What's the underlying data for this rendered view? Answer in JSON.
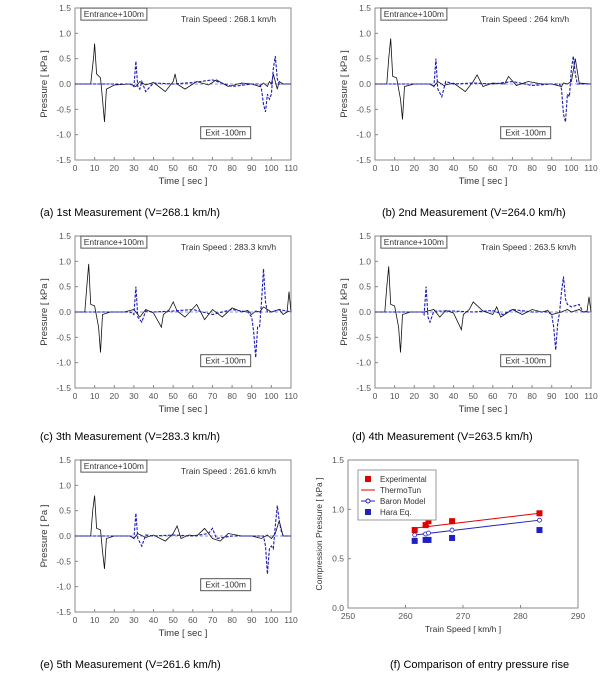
{
  "chart_data": [
    {
      "type": "line",
      "panel": "a",
      "caption": "(a)  1st Measurement (V=268.1 km/h)",
      "xlabel": "Time [ sec ]",
      "ylabel": "Pressure [ kPa ]",
      "xlim": [
        0,
        110
      ],
      "ylim": [
        -1.5,
        1.5
      ],
      "xticks": [
        "0",
        "10",
        "20",
        "30",
        "40",
        "50",
        "60",
        "70",
        "80",
        "90",
        "100",
        "110"
      ],
      "yticks": [
        "1.5",
        "1.0",
        "0.5",
        "0.0",
        "-0.5",
        "-1.0",
        "-1.5"
      ],
      "annotations": [
        "Entrance+100m",
        "Exit -100m"
      ],
      "speed_text": "Train Speed : 268.1 km/h",
      "series": [
        {
          "style": "solid",
          "x": [
            0,
            8,
            9.5,
            10,
            11,
            13,
            14,
            15,
            16,
            20,
            28,
            31,
            33,
            36,
            40,
            46,
            50,
            51,
            52,
            56,
            62,
            68,
            72,
            78,
            85,
            90,
            94,
            96,
            98,
            99,
            100,
            101,
            102,
            103,
            104,
            106,
            110
          ],
          "y": [
            0,
            0,
            0.55,
            0.8,
            0.2,
            0.12,
            -0.3,
            -0.75,
            -0.1,
            -0.02,
            0,
            -0.05,
            0.05,
            -0.02,
            0.03,
            -0.15,
            0.05,
            0.2,
            0,
            -0.1,
            0.05,
            -0.02,
            0.08,
            -0.05,
            0.02,
            0,
            -0.05,
            0.02,
            -0.05,
            0.05,
            0,
            0.2,
            0.05,
            -0.1,
            0.05,
            0,
            0
          ]
        },
        {
          "style": "dashed",
          "x": [
            0,
            28,
            30,
            31,
            32,
            33,
            34,
            36,
            40,
            50,
            60,
            70,
            80,
            90,
            94,
            95,
            96,
            97,
            98,
            99,
            100,
            101,
            102,
            103,
            104,
            106,
            110
          ],
          "y": [
            0,
            0,
            -0.05,
            0.45,
            -0.05,
            -0.1,
            0.05,
            -0.15,
            0.02,
            0,
            0.03,
            0.08,
            -0.05,
            0,
            0,
            -0.1,
            -0.4,
            -0.55,
            -0.2,
            -0.3,
            -0.2,
            0.3,
            0.55,
            0.1,
            0,
            0,
            0
          ]
        }
      ]
    },
    {
      "type": "line",
      "panel": "b",
      "caption": "(b)  2nd Measurement (V=264.0 km/h)",
      "xlabel": "Time [ sec ]",
      "ylabel": "Pressure [ kPa ]",
      "xlim": [
        0,
        110
      ],
      "ylim": [
        -1.5,
        1.5
      ],
      "xticks": [
        "0",
        "10",
        "20",
        "30",
        "40",
        "50",
        "60",
        "70",
        "80",
        "90",
        "100",
        "110"
      ],
      "yticks": [
        "1.5",
        "1.0",
        "0.5",
        "0.0",
        "-0.5",
        "-1.0",
        "-1.5"
      ],
      "annotations": [
        "Entrance+100m",
        "Exit -100m"
      ],
      "speed_text": "Train Speed : 264 km/h",
      "series": [
        {
          "style": "solid",
          "x": [
            0,
            6,
            7,
            8,
            9,
            11,
            13,
            14,
            15,
            20,
            28,
            30,
            32,
            35,
            40,
            46,
            50,
            52,
            55,
            60,
            66,
            68,
            72,
            78,
            85,
            90,
            95,
            96,
            98,
            100,
            102,
            104,
            110
          ],
          "y": [
            0,
            0,
            0.5,
            0.9,
            0.15,
            0.12,
            -0.3,
            -0.7,
            -0.05,
            0,
            0,
            -0.05,
            0.05,
            -0.03,
            0.02,
            -0.15,
            0.05,
            0.18,
            -0.05,
            0.02,
            0,
            0.15,
            -0.03,
            0.05,
            0,
            0,
            -0.05,
            0.02,
            0,
            0.05,
            0.5,
            0.02,
            0
          ]
        },
        {
          "style": "dashed",
          "x": [
            0,
            28,
            30,
            31,
            32,
            34,
            36,
            40,
            50,
            60,
            70,
            80,
            90,
            94,
            95,
            96,
            97,
            98,
            99,
            100,
            101,
            102,
            103,
            105,
            110
          ],
          "y": [
            0,
            0,
            -0.05,
            0.5,
            -0.1,
            -0.25,
            0.05,
            0,
            0.02,
            0,
            0.05,
            -0.03,
            0,
            0,
            -0.1,
            -0.6,
            -0.75,
            -0.2,
            -0.25,
            0.3,
            0.55,
            0.2,
            0,
            0,
            0
          ]
        }
      ]
    },
    {
      "type": "line",
      "panel": "c",
      "caption": "(c)  3th Measurement (V=283.3 km/h)",
      "xlabel": "Time [ sec ]",
      "ylabel": "Pressure [ kPa ]",
      "xlim": [
        0,
        110
      ],
      "ylim": [
        -1.5,
        1.5
      ],
      "xticks": [
        "0",
        "10",
        "20",
        "30",
        "40",
        "50",
        "60",
        "70",
        "80",
        "90",
        "100",
        "110"
      ],
      "yticks": [
        "1.5",
        "1.0",
        "0.5",
        "0.0",
        "-0.5",
        "-1.0",
        "-1.5"
      ],
      "annotations": [
        "Entrance+100m",
        "Exit -100m"
      ],
      "speed_text": "Train Speed : 283.3 km/h",
      "series": [
        {
          "style": "solid",
          "x": [
            0,
            5,
            6,
            7,
            8,
            10,
            12,
            13,
            14,
            18,
            25,
            30,
            33,
            36,
            40,
            44,
            45,
            48,
            50,
            52,
            56,
            62,
            66,
            70,
            75,
            80,
            85,
            88,
            90,
            92,
            94,
            96,
            100,
            104,
            106,
            108,
            109,
            110
          ],
          "y": [
            0,
            0,
            0.5,
            0.95,
            0.15,
            0.12,
            -0.3,
            -0.8,
            -0.05,
            0,
            0,
            0.05,
            -0.1,
            0.05,
            -0.02,
            -0.3,
            -0.05,
            0.05,
            0.2,
            0.02,
            -0.1,
            0.15,
            -0.15,
            0.05,
            -0.1,
            0.08,
            0,
            0.03,
            -0.05,
            0.02,
            0,
            0.1,
            0,
            0.05,
            -0.05,
            0,
            0.4,
            0
          ]
        },
        {
          "style": "dashed",
          "x": [
            0,
            28,
            30,
            31,
            32,
            34,
            36,
            40,
            50,
            60,
            70,
            80,
            88,
            90,
            91,
            92,
            93,
            94,
            95,
            96,
            97,
            98,
            100,
            104,
            110
          ],
          "y": [
            0,
            0,
            -0.05,
            0.5,
            -0.1,
            -0.2,
            0.02,
            0,
            0.02,
            0.05,
            -0.05,
            0.05,
            0,
            -0.1,
            -0.4,
            -0.9,
            -0.3,
            -0.3,
            0.2,
            0.85,
            0.2,
            0,
            0,
            0.05,
            0
          ]
        }
      ]
    },
    {
      "type": "line",
      "panel": "d",
      "caption": "(d)  4th Measurement (V=263.5 km/h)",
      "xlabel": "Time [ sec ]",
      "ylabel": "Pressure [ kPa ]",
      "xlim": [
        0,
        110
      ],
      "ylim": [
        -1.5,
        1.5
      ],
      "xticks": [
        "0",
        "10",
        "20",
        "30",
        "40",
        "50",
        "60",
        "70",
        "80",
        "90",
        "100",
        "110"
      ],
      "yticks": [
        "1.5",
        "1.0",
        "0.5",
        "0.0",
        "-0.5",
        "-1.0",
        "-1.5"
      ],
      "annotations": [
        "Entrance+100m",
        "Exit -100m"
      ],
      "speed_text": "Train Speed : 263.5 km/h",
      "series": [
        {
          "style": "solid",
          "x": [
            0,
            5,
            6,
            7,
            8,
            10,
            12,
            13,
            14,
            18,
            25,
            30,
            33,
            36,
            40,
            44,
            45,
            48,
            50,
            55,
            60,
            62,
            64,
            70,
            75,
            80,
            85,
            88,
            90,
            95,
            98,
            100,
            104,
            106,
            108,
            109,
            110
          ],
          "y": [
            0,
            0,
            0.5,
            0.9,
            0.15,
            0.12,
            -0.3,
            -0.8,
            -0.05,
            0,
            0,
            0.05,
            -0.1,
            0.03,
            -0.02,
            -0.35,
            -0.05,
            0.05,
            0.2,
            0.02,
            -0.05,
            0.1,
            -0.1,
            0.05,
            -0.05,
            0.05,
            0,
            0.03,
            -0.05,
            0,
            0.05,
            0,
            0.05,
            0,
            0.02,
            0.3,
            0
          ]
        },
        {
          "style": "dashed",
          "x": [
            0,
            24,
            25,
            26,
            27,
            28,
            30,
            40,
            50,
            60,
            65,
            70,
            80,
            88,
            90,
            91,
            92,
            93,
            94,
            95,
            96,
            97,
            98,
            100,
            104,
            106,
            110
          ],
          "y": [
            0,
            0,
            -0.05,
            0.5,
            -0.1,
            -0.2,
            0.02,
            0.02,
            0,
            0.03,
            -0.05,
            0.05,
            0,
            0,
            -0.05,
            -0.3,
            -0.75,
            -0.25,
            0,
            0.4,
            0.7,
            0.25,
            0.15,
            0.1,
            0.15,
            0,
            0
          ]
        }
      ]
    },
    {
      "type": "line",
      "panel": "e",
      "caption": "(e)  5th Measurement (V=261.6 km/h)",
      "xlabel": "Time [ sec ]",
      "ylabel": "Pressure [ Pa ]",
      "xlim": [
        0,
        110
      ],
      "ylim": [
        -1.5,
        1.5
      ],
      "xticks": [
        "0",
        "10",
        "20",
        "30",
        "40",
        "50",
        "60",
        "70",
        "80",
        "90",
        "100",
        "110"
      ],
      "yticks": [
        "1.5",
        "1.0",
        "0.5",
        "0.0",
        "-0.5",
        "-1.0",
        "-1.5"
      ],
      "annotations": [
        "Entrance+100m",
        "Exit -100m"
      ],
      "speed_text": "Train Speed : 261.6 km/h",
      "series": [
        {
          "style": "solid",
          "x": [
            0,
            8,
            9,
            10,
            11,
            13,
            14,
            15,
            16,
            20,
            28,
            30,
            32,
            36,
            40,
            46,
            50,
            52,
            54,
            58,
            62,
            66,
            70,
            74,
            78,
            85,
            90,
            95,
            98,
            100,
            102,
            104,
            106,
            110
          ],
          "y": [
            0,
            0,
            0.5,
            0.8,
            0.15,
            0.12,
            -0.3,
            -0.65,
            -0.05,
            0,
            0,
            -0.05,
            0.05,
            -0.03,
            0.02,
            -0.1,
            0.05,
            0.2,
            -0.05,
            0.02,
            0,
            0.15,
            -0.05,
            -0.1,
            0.05,
            0,
            0,
            -0.05,
            0.02,
            -0.05,
            0.05,
            0.3,
            0,
            0
          ]
        },
        {
          "style": "dashed",
          "x": [
            0,
            28,
            30,
            31,
            32,
            34,
            36,
            40,
            50,
            60,
            68,
            70,
            72,
            80,
            90,
            96,
            97,
            98,
            99,
            100,
            101,
            102,
            103,
            104,
            105,
            106,
            110
          ],
          "y": [
            0,
            0,
            -0.05,
            0.45,
            -0.05,
            -0.2,
            0.02,
            0,
            0.02,
            0,
            0.05,
            0.15,
            -0.05,
            0,
            0,
            0,
            -0.2,
            -0.75,
            -0.25,
            -0.2,
            -0.25,
            0.2,
            0.6,
            0.3,
            0.1,
            0,
            0
          ]
        }
      ]
    },
    {
      "type": "scatter",
      "panel": "f",
      "caption": "(f)  Comparison of entry pressure rise",
      "xlabel": "Train Speed [ km/h ]",
      "ylabel": "Compression Pressure [ kPa ]",
      "xlim": [
        250,
        290
      ],
      "ylim": [
        0,
        1.5
      ],
      "xticks": [
        "250",
        "260",
        "270",
        "280",
        "290"
      ],
      "yticks": [
        "1.5",
        "1.0",
        "0.5",
        "0.0"
      ],
      "legend_position": "top-left",
      "series": [
        {
          "name": "Experimental",
          "color": "#e00000",
          "marker": "square",
          "x": [
            261.6,
            263.5,
            264.0,
            268.1,
            283.3
          ],
          "y": [
            0.79,
            0.84,
            0.88,
            0.88,
            0.96
          ]
        },
        {
          "name": "ThermoTun",
          "color": "#e00000",
          "marker": "line",
          "x": [
            261.6,
            263.5,
            264.0,
            268.1,
            283.3
          ],
          "y": [
            0.81,
            0.82,
            0.83,
            0.86,
            0.96
          ]
        },
        {
          "name": "Baron Model",
          "color": "#2020c0",
          "marker": "line-circle",
          "x": [
            261.6,
            263.5,
            264.0,
            268.1,
            283.3
          ],
          "y": [
            0.74,
            0.75,
            0.76,
            0.79,
            0.89
          ]
        },
        {
          "name": "Hara Eq.",
          "color": "#2020c0",
          "marker": "square",
          "x": [
            261.6,
            263.5,
            264.0,
            268.1,
            283.3
          ],
          "y": [
            0.68,
            0.69,
            0.69,
            0.71,
            0.79
          ]
        }
      ]
    }
  ]
}
